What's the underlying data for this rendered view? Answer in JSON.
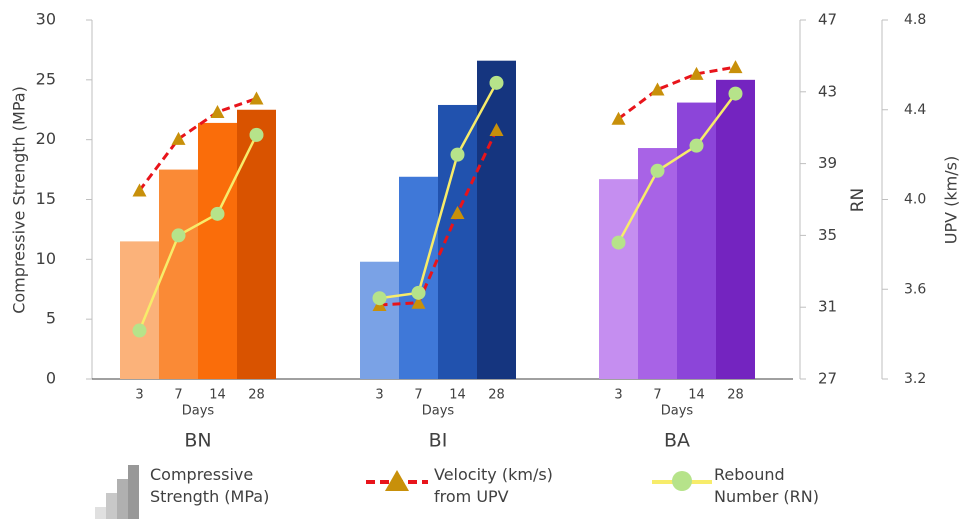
{
  "chart_data": {
    "type": "bar-line",
    "categories": [
      "3",
      "7",
      "14",
      "28"
    ],
    "x_label": "Days",
    "y_label": "Compressive Strength (MPa)",
    "ylim": [
      0,
      30
    ],
    "yticks": [
      0,
      5,
      10,
      15,
      20,
      25,
      30
    ],
    "y2_label": "RN",
    "y2lim": [
      27,
      47
    ],
    "y2ticks": [
      27,
      31,
      35,
      39,
      43,
      47
    ],
    "y3_label": "UPV (km/s)",
    "y3lim": [
      3.2,
      4.8
    ],
    "y3ticks": [
      3.2,
      3.6,
      {
        "value": 4,
        "label": "4.0"
      },
      4.4,
      4.8
    ],
    "groups": [
      {
        "name": "BN",
        "colors": [
          "#fbb27a",
          "#fa8a36",
          "#fa6d0a",
          "#d95300"
        ],
        "strength": [
          11.5,
          17.5,
          21.4,
          22.5
        ],
        "rn": [
          29.7,
          35.0,
          36.2,
          40.6
        ],
        "upv": [
          4.04,
          4.27,
          4.39,
          4.45
        ]
      },
      {
        "name": "BI",
        "colors": [
          "#7aa2e6",
          "#3f78d8",
          "#2152ae",
          "#15357f"
        ],
        "strength": [
          9.8,
          16.9,
          22.9,
          26.6
        ],
        "rn": [
          31.5,
          31.8,
          39.5,
          43.5
        ],
        "upv": [
          3.53,
          3.54,
          3.94,
          4.31
        ]
      },
      {
        "name": "BA",
        "colors": [
          "#c58ef0",
          "#a863e6",
          "#8c45d9",
          "#7424c0"
        ],
        "strength": [
          16.7,
          19.3,
          23.1,
          25.0
        ],
        "rn": [
          34.6,
          38.6,
          40.0,
          42.9
        ],
        "upv": [
          4.36,
          4.49,
          4.56,
          4.59
        ]
      }
    ],
    "legend": [
      {
        "name": "Compressive Strength (MPa)",
        "color": "#a0a0a0"
      },
      {
        "name": "Velocity (km/s) from UPV",
        "color": "#e8141b",
        "marker_color": "#c8900a"
      },
      {
        "name": "Rebound Number (RN)",
        "color": "#f7ec6a",
        "marker_color": "#b6e38a"
      }
    ]
  }
}
